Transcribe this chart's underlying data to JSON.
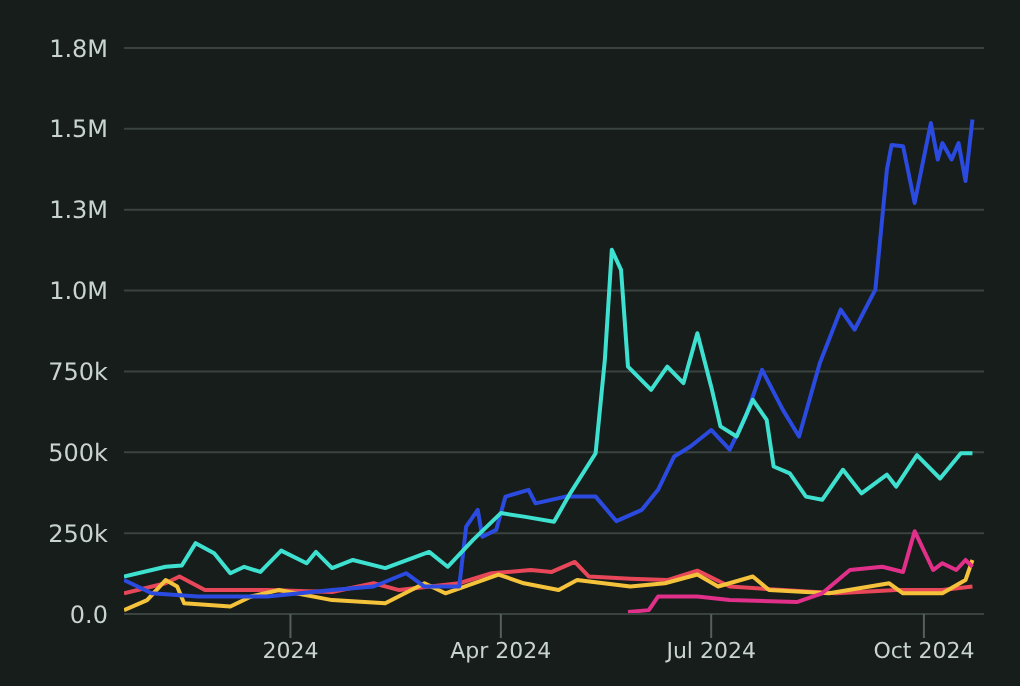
{
  "chart_data": {
    "type": "line",
    "xlim": [
      "2023-10-21",
      "2024-10-27"
    ],
    "xticks": [
      {
        "value": "2024-01-01",
        "label": "2024"
      },
      {
        "value": "2024-04-01",
        "label": "Apr 2024"
      },
      {
        "value": "2024-07-01",
        "label": "Jul 2024"
      },
      {
        "value": "2024-10-01",
        "label": "Oct 2024"
      }
    ],
    "ylim": [
      0,
      1750000
    ],
    "yticks": [
      {
        "value": 0,
        "label": "0.0"
      },
      {
        "value": 250000,
        "label": "250k"
      },
      {
        "value": 500000,
        "label": "500k"
      },
      {
        "value": 750000,
        "label": "750k"
      },
      {
        "value": 1000000,
        "label": "1.0M"
      },
      {
        "value": 1250000,
        "label": "1.3M"
      },
      {
        "value": 1500000,
        "label": "1.5M"
      },
      {
        "value": 1750000,
        "label": "1.8M"
      }
    ],
    "grid": "y",
    "legend": false,
    "marker": "none",
    "line_style": "solid",
    "series": [
      {
        "color": "#e8475a",
        "x": [
          "2023-10-21",
          "2023-11-08",
          "2023-11-14",
          "2023-11-25",
          "2023-12-22",
          "2024-01-19",
          "2024-02-06",
          "2024-02-17",
          "2024-03-14",
          "2024-03-28",
          "2024-04-14",
          "2024-04-23",
          "2024-05-03",
          "2024-05-09",
          "2024-05-27",
          "2024-06-12",
          "2024-06-25",
          "2024-07-09",
          "2024-08-01",
          "2024-08-24",
          "2024-09-19",
          "2024-10-09",
          "2024-10-22"
        ],
        "values": [
          64000,
          95000,
          116000,
          74000,
          74000,
          68000,
          95000,
          74000,
          95000,
          126000,
          136000,
          130000,
          161000,
          116000,
          109000,
          105000,
          134000,
          85000,
          74000,
          64000,
          74000,
          74000,
          85000
        ]
      },
      {
        "color": "#f5c33b",
        "x": [
          "2023-10-21",
          "2023-10-31",
          "2023-11-08",
          "2023-11-13",
          "2023-11-16",
          "2023-12-06",
          "2023-12-15",
          "2023-12-27",
          "2024-01-19",
          "2024-02-11",
          "2024-02-28",
          "2024-03-08",
          "2024-03-31",
          "2024-04-11",
          "2024-04-26",
          "2024-05-04",
          "2024-05-27",
          "2024-06-11",
          "2024-06-25",
          "2024-07-04",
          "2024-07-19",
          "2024-07-26",
          "2024-08-21",
          "2024-09-16",
          "2024-09-22",
          "2024-10-09",
          "2024-10-19",
          "2024-10-22"
        ],
        "values": [
          12000,
          43000,
          105000,
          85000,
          33000,
          23000,
          54000,
          74000,
          43000,
          33000,
          95000,
          64000,
          122000,
          95000,
          74000,
          105000,
          85000,
          95000,
          122000,
          85000,
          116000,
          74000,
          64000,
          95000,
          64000,
          64000,
          105000,
          167000
        ]
      },
      {
        "color": "#e0308a",
        "x": [
          "2024-05-26",
          "2024-06-04",
          "2024-06-08",
          "2024-06-25",
          "2024-07-09",
          "2024-08-07",
          "2024-08-18",
          "2024-08-30",
          "2024-09-13",
          "2024-09-22",
          "2024-09-27",
          "2024-10-05",
          "2024-10-09",
          "2024-10-15",
          "2024-10-19",
          "2024-10-22"
        ],
        "values": [
          6000,
          12000,
          54000,
          54000,
          43000,
          37000,
          64000,
          136000,
          146000,
          130000,
          256000,
          136000,
          157000,
          136000,
          167000,
          146000
        ]
      },
      {
        "color": "#2b4be0",
        "x": [
          "2023-10-21",
          "2023-11-02",
          "2023-11-22",
          "2023-12-22",
          "2024-01-19",
          "2024-02-06",
          "2024-02-20",
          "2024-02-28",
          "2024-03-14",
          "2024-03-17",
          "2024-03-22",
          "2024-03-24",
          "2024-03-30",
          "2024-04-03",
          "2024-04-13",
          "2024-04-16",
          "2024-04-29",
          "2024-05-12",
          "2024-05-21",
          "2024-06-01",
          "2024-06-08",
          "2024-06-15",
          "2024-06-22",
          "2024-07-01",
          "2024-07-09",
          "2024-07-16",
          "2024-07-23",
          "2024-08-01",
          "2024-08-08",
          "2024-08-17",
          "2024-08-26",
          "2024-09-01",
          "2024-09-10",
          "2024-09-15",
          "2024-09-17",
          "2024-09-22",
          "2024-09-27",
          "2024-10-04",
          "2024-10-07",
          "2024-10-09",
          "2024-10-13",
          "2024-10-16",
          "2024-10-19",
          "2024-10-22"
        ],
        "values": [
          105000,
          64000,
          54000,
          54000,
          74000,
          85000,
          126000,
          85000,
          85000,
          270000,
          322000,
          239000,
          260000,
          363000,
          384000,
          342000,
          363000,
          363000,
          287000,
          322000,
          384000,
          487000,
          518000,
          569000,
          508000,
          611000,
          755000,
          631000,
          549000,
          776000,
          941000,
          879000,
          1003000,
          1374000,
          1450000,
          1446000,
          1271000,
          1518000,
          1405000,
          1456000,
          1405000,
          1456000,
          1339000,
          1529000
        ]
      },
      {
        "color": "#3ee0cf",
        "x": [
          "2023-10-21",
          "2023-11-08",
          "2023-11-15",
          "2023-11-21",
          "2023-11-29",
          "2023-12-06",
          "2023-12-12",
          "2023-12-19",
          "2023-12-28",
          "2024-01-08",
          "2024-01-12",
          "2024-01-19",
          "2024-01-28",
          "2024-02-11",
          "2024-03-01",
          "2024-03-09",
          "2024-03-20",
          "2024-04-01",
          "2024-04-11",
          "2024-04-24",
          "2024-05-01",
          "2024-05-12",
          "2024-05-16",
          "2024-05-19",
          "2024-05-23",
          "2024-05-26",
          "2024-06-05",
          "2024-06-12",
          "2024-06-19",
          "2024-06-25",
          "2024-07-01",
          "2024-07-05",
          "2024-07-12",
          "2024-07-19",
          "2024-07-25",
          "2024-07-28",
          "2024-08-04",
          "2024-08-11",
          "2024-08-18",
          "2024-08-27",
          "2024-09-04",
          "2024-09-15",
          "2024-09-19",
          "2024-09-28",
          "2024-10-08",
          "2024-10-17",
          "2024-10-22"
        ],
        "values": [
          116000,
          146000,
          150000,
          219000,
          188000,
          126000,
          146000,
          130000,
          196000,
          157000,
          192000,
          142000,
          167000,
          142000,
          192000,
          146000,
          229000,
          312000,
          301000,
          285000,
          373000,
          497000,
          786000,
          1126000,
          1064000,
          765000,
          693000,
          765000,
          714000,
          868000,
          703000,
          580000,
          549000,
          662000,
          600000,
          456000,
          435000,
          363000,
          353000,
          446000,
          373000,
          431000,
          394000,
          491000,
          419000,
          497000,
          497000
        ]
      }
    ]
  }
}
